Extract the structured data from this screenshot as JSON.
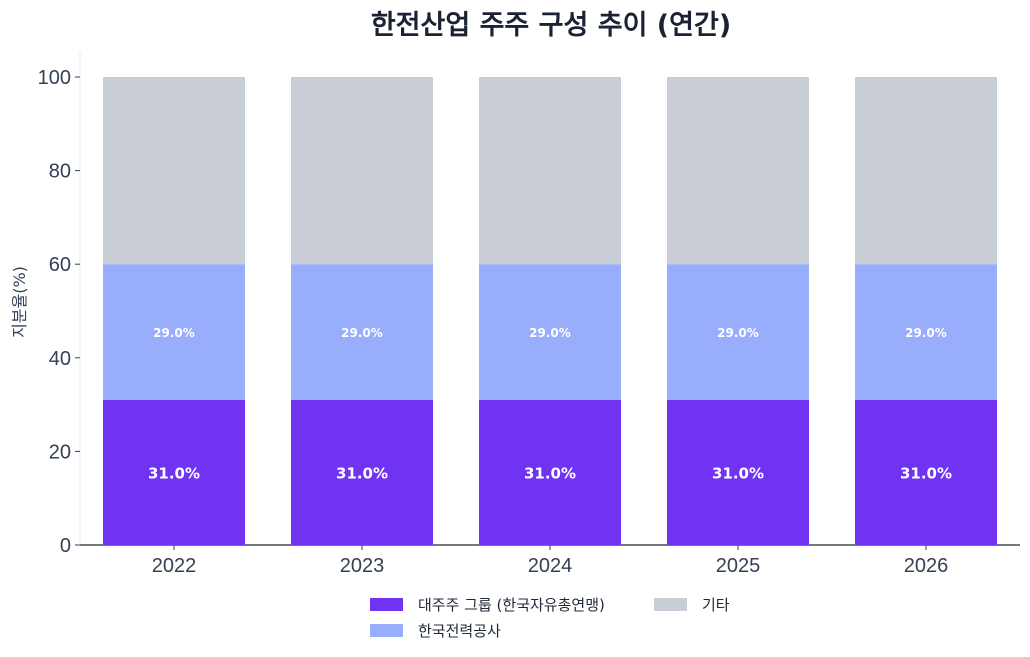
{
  "chart_data": {
    "type": "bar",
    "stacked": true,
    "title": "한전산업 주주 구성 추이 (연간)",
    "xlabel": "",
    "ylabel": "지분율(%)",
    "ylim": [
      0,
      100
    ],
    "yticks": [
      0,
      20,
      40,
      60,
      80,
      100
    ],
    "categories": [
      "2022",
      "2023",
      "2024",
      "2025",
      "2026"
    ],
    "series": [
      {
        "name": "대주주 그룹 (한국자유총연맹)",
        "values": [
          31.0,
          31.0,
          31.0,
          31.0,
          31.0
        ],
        "color": "#7033f2",
        "labels": [
          "31.0%",
          "31.0%",
          "31.0%",
          "31.0%",
          "31.0%"
        ]
      },
      {
        "name": "한국전력공사",
        "values": [
          29.0,
          29.0,
          29.0,
          29.0,
          29.0
        ],
        "color": "#99adfd",
        "labels": [
          "29.0%",
          "29.0%",
          "29.0%",
          "29.0%",
          "29.0%"
        ]
      },
      {
        "name": "기타",
        "values": [
          40.0,
          40.0,
          40.0,
          40.0,
          40.0
        ],
        "color": "#c8cdd6"
      }
    ],
    "grid": false,
    "legend_position": "bottom-center"
  }
}
